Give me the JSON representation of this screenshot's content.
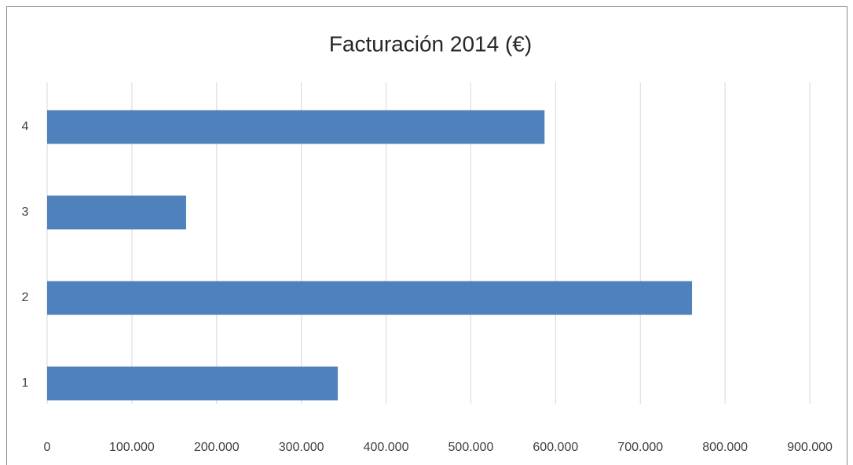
{
  "chart_data": {
    "type": "bar",
    "orientation": "horizontal",
    "title": "Facturación 2014 (€)",
    "categories": [
      "1",
      "2",
      "3",
      "4"
    ],
    "values": [
      343000,
      761000,
      164000,
      587000
    ],
    "color": "#4f81bd",
    "xlim": [
      0,
      900000
    ],
    "xticks": [
      0,
      {
        "value": 100000,
        "label": "100.000"
      },
      {
        "value": 200000,
        "label": "200.000"
      },
      {
        "value": 300000,
        "label": "300.000"
      },
      {
        "value": 400000,
        "label": "400.000"
      },
      {
        "value": 500000,
        "label": "500.000"
      },
      {
        "value": 600000,
        "label": "600.000"
      },
      {
        "value": 700000,
        "label": "700.000"
      },
      {
        "value": 800000,
        "label": "800.000"
      },
      {
        "value": 900000,
        "label": "900.000"
      }
    ],
    "grid": true
  }
}
